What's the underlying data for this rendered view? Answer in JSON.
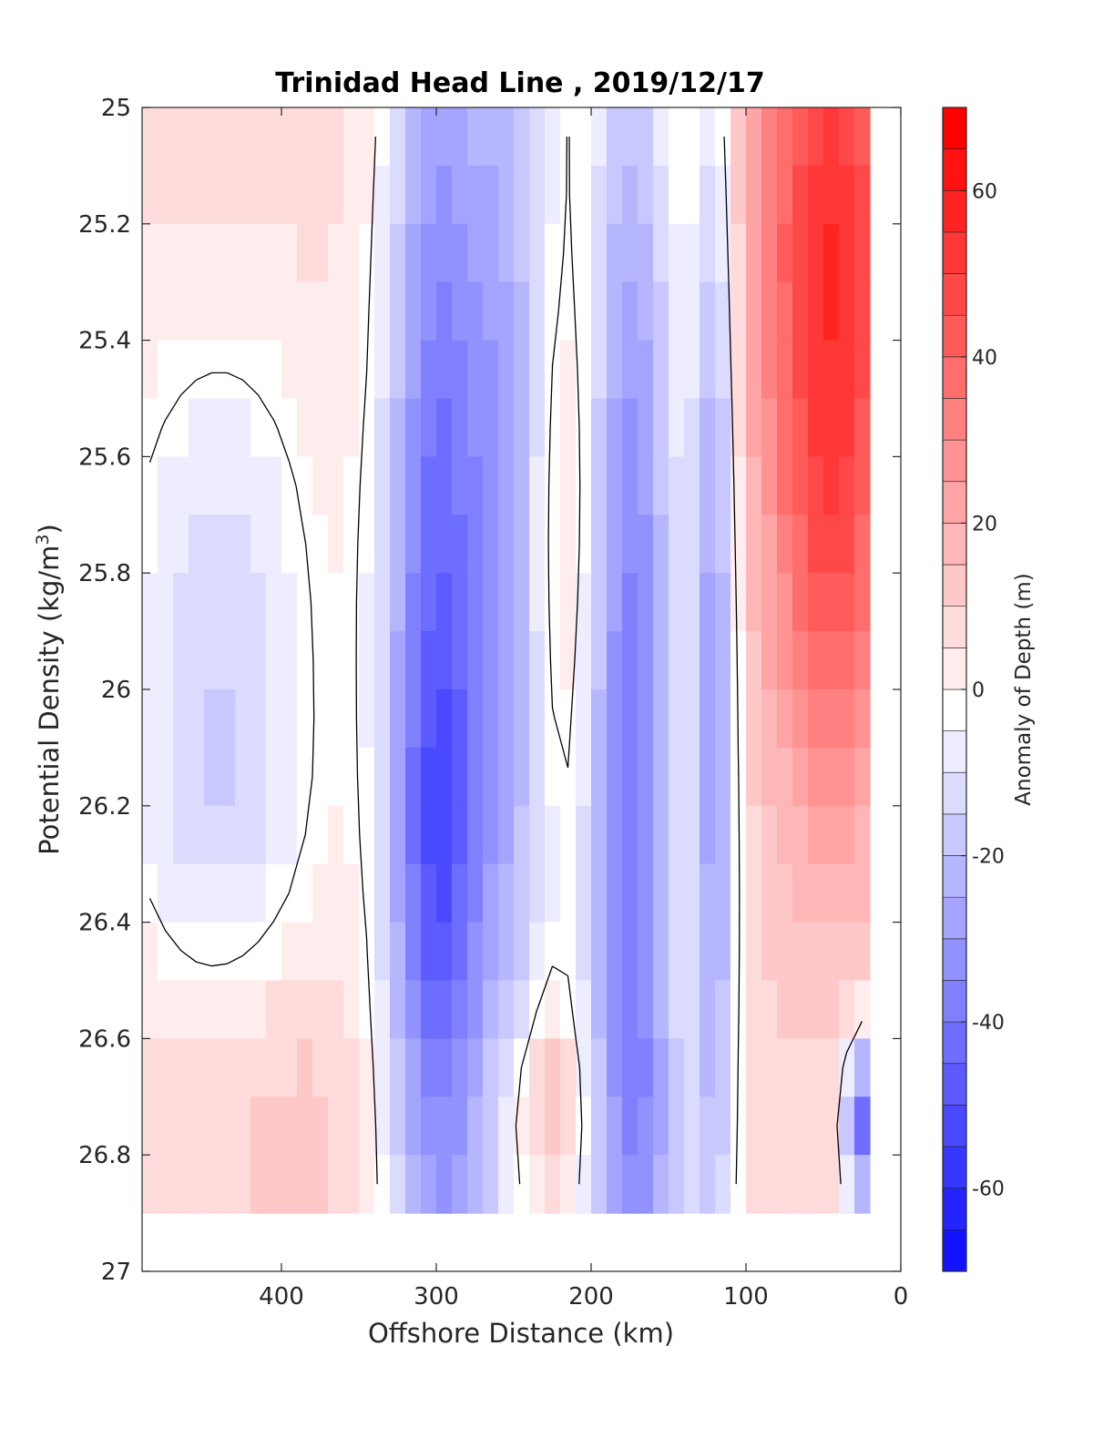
{
  "chart_data": {
    "type": "heatmap",
    "title": "Trinidad Head Line , 2019/12/17",
    "xlabel": "Offshore Distance (km)",
    "ylabel_main": "Potential Density (kg/m",
    "ylabel_sup": "3",
    "ylabel_close": ")",
    "colorbar_label": "Anomaly of Depth (m)",
    "xlim": [
      490,
      0
    ],
    "ylim": [
      25,
      27
    ],
    "x_reversed": true,
    "y_reversed": true,
    "x_ticks": [
      400,
      300,
      200,
      100,
      0
    ],
    "x_tick_labels": [
      "400",
      "300",
      "200",
      "100",
      "0"
    ],
    "y_ticks": [
      25,
      25.2,
      25.4,
      25.6,
      25.8,
      26,
      26.2,
      26.4,
      26.6,
      26.8,
      27
    ],
    "y_tick_labels": [
      "25",
      "25.2",
      "25.4",
      "25.6",
      "25.8",
      "26",
      "26.2",
      "26.4",
      "26.6",
      "26.8",
      "27"
    ],
    "colorbar_range": [
      -70,
      70
    ],
    "colorbar_ticks": [
      60,
      40,
      20,
      0,
      -20,
      -40,
      -60
    ],
    "colorbar_tick_labels": [
      "60",
      "40",
      "20",
      "0",
      "-20",
      "-40",
      "-60"
    ],
    "colormap": {
      "negative": "#0000ff",
      "zero": "#ffffff",
      "positive": "#ff0000"
    },
    "contour_levels_step": 5,
    "zero_contour_color": "#000000",
    "x": [
      485,
      475,
      465,
      455,
      445,
      435,
      425,
      415,
      405,
      395,
      385,
      375,
      365,
      355,
      345,
      335,
      325,
      315,
      305,
      295,
      285,
      275,
      265,
      255,
      245,
      235,
      225,
      215,
      205,
      195,
      185,
      175,
      165,
      155,
      145,
      135,
      125,
      115,
      105,
      95,
      85,
      75,
      65,
      55,
      45,
      35,
      25
    ],
    "y": [
      25.05,
      25.15,
      25.25,
      25.35,
      25.45,
      25.55,
      25.65,
      25.75,
      25.85,
      25.95,
      26.05,
      26.15,
      26.25,
      26.35,
      26.45,
      26.55,
      26.65,
      26.75,
      26.85
    ],
    "data_bottom_limit": 26.9,
    "data_right_limit": 20,
    "data_left_limit": 490
  }
}
